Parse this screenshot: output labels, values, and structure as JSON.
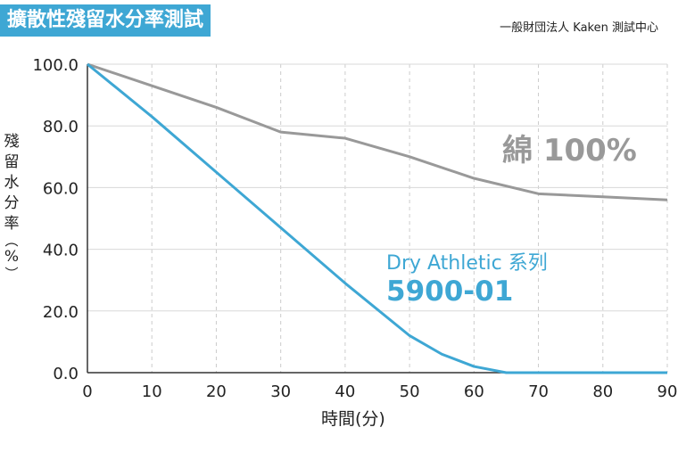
{
  "title": "擴散性殘留水分率測試",
  "source": "一般財団法人 Kaken 測試中心",
  "chart_data": {
    "type": "line",
    "title": "擴散性殘留水分率測試",
    "xlabel": "時間(分)",
    "ylabel": "殘留水分率(%)",
    "xlim": [
      0,
      90
    ],
    "ylim": [
      0,
      100
    ],
    "xticks": [
      "0",
      "10",
      "20",
      "30",
      "40",
      "50",
      "60",
      "70",
      "80",
      "90"
    ],
    "yticks": [
      "0.0",
      "20.0",
      "40.0",
      "60.0",
      "80.0",
      "100.0"
    ],
    "grid": "vertical dashed",
    "series": [
      {
        "name": "綿 100%",
        "label": "綿 100%",
        "color": "#999999",
        "x": [
          0,
          10,
          20,
          30,
          40,
          50,
          60,
          70,
          80,
          90
        ],
        "y": [
          100,
          93,
          86,
          78,
          76,
          70,
          63,
          58,
          57,
          56
        ]
      },
      {
        "name": "Dry Athletic 系列 5900-01",
        "label_line1": "Dry Athletic 系列",
        "label_line2": "5900-01",
        "color": "#3ea7d4",
        "x": [
          0,
          10,
          20,
          30,
          40,
          50,
          55,
          60,
          65,
          70,
          80,
          90
        ],
        "y": [
          100,
          83,
          65,
          47,
          29,
          12,
          6,
          2,
          0,
          0,
          0,
          0
        ]
      }
    ]
  }
}
